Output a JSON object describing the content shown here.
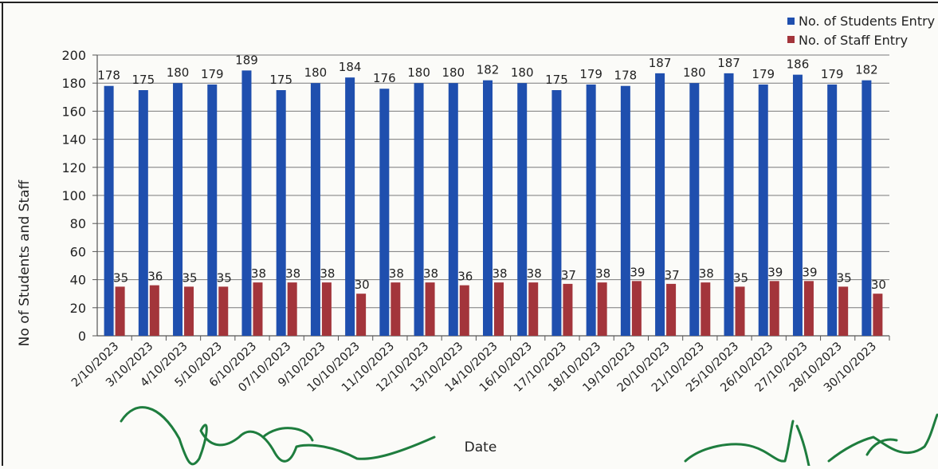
{
  "chart_data": {
    "type": "bar",
    "categories": [
      "2/10/2023",
      "3/10/2023",
      "4/10/2023",
      "5/10/2023",
      "6/10/2023",
      "07/10/2023",
      "9/10/2023",
      "10/10/2023",
      "11/10/2023",
      "12/10/2023",
      "13/10/2023",
      "14/10/2023",
      "16/10/2023",
      "17/10/2023",
      "18/10/2023",
      "19/10/2023",
      "20/10/2023",
      "21/10/2023",
      "25/10/2023",
      "26/10/2023",
      "27/10/2023",
      "28/10/2023",
      "30/10/2023"
    ],
    "series": [
      {
        "name": "No. of Students Entry",
        "color": "#1f4fae",
        "values": [
          178,
          175,
          180,
          179,
          189,
          175,
          180,
          184,
          176,
          180,
          180,
          182,
          180,
          175,
          179,
          178,
          187,
          180,
          187,
          179,
          186,
          179,
          182
        ]
      },
      {
        "name": "No. of  Staff Entry",
        "color": "#a3353b",
        "values": [
          35,
          36,
          35,
          35,
          38,
          38,
          38,
          30,
          38,
          38,
          36,
          38,
          38,
          37,
          38,
          39,
          37,
          38,
          35,
          39,
          39,
          35,
          30
        ]
      }
    ],
    "title": "",
    "xlabel": "Date",
    "ylabel": "No of  Students and Staff",
    "ylim": [
      0,
      200
    ],
    "yticks": [
      0,
      20,
      40,
      60,
      80,
      100,
      120,
      140,
      160,
      180,
      200
    ],
    "grid": true,
    "legend": "top-right"
  },
  "signature_color": "#1e7d3e"
}
